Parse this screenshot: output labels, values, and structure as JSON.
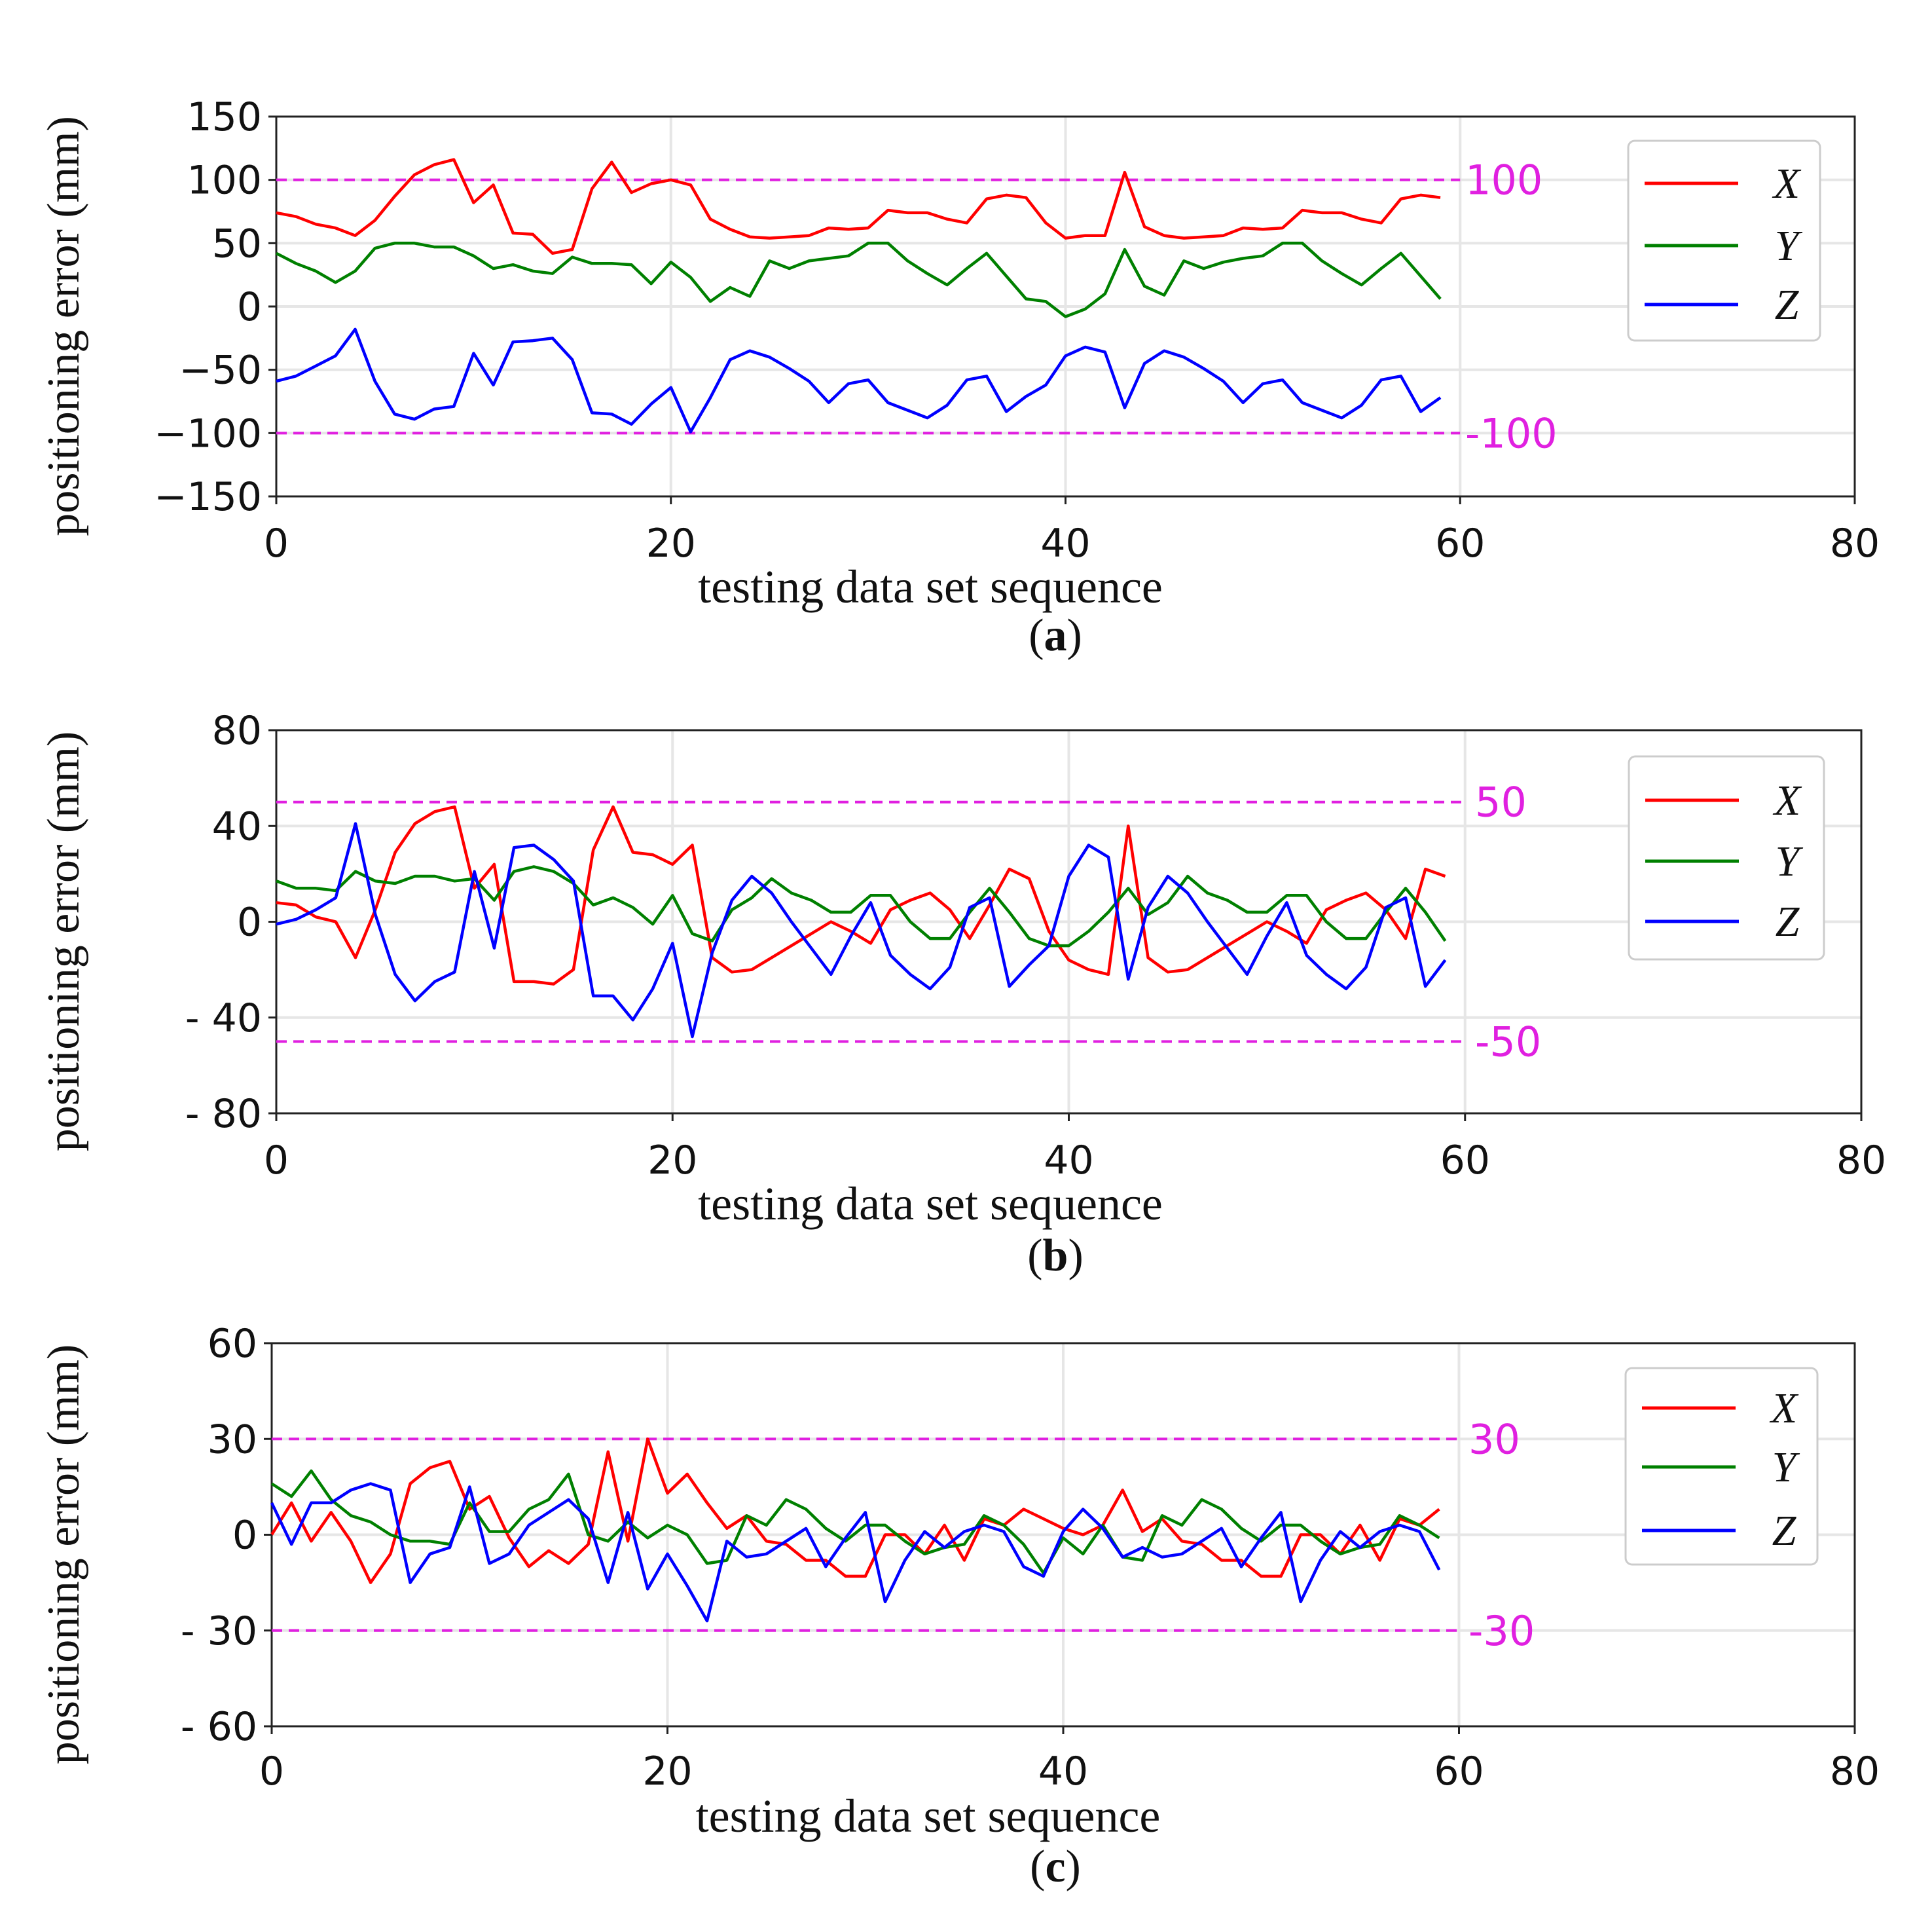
{
  "chart_data": [
    {
      "type": "line",
      "panel": "(a)",
      "caption_letter": "a",
      "xlabel": "testing data set sequence",
      "ylabel": "positioning error (mm)",
      "xlim": [
        0,
        80
      ],
      "ylim": [
        -150,
        150
      ],
      "xticks": [
        0,
        20,
        40,
        60,
        80
      ],
      "yticks": [
        150,
        100,
        50,
        0,
        -50,
        -100,
        -150
      ],
      "ytick_labels": [
        "150",
        "100",
        "50",
        "0",
        "−50",
        "−100",
        "−150"
      ],
      "grid": true,
      "legend": "top-right",
      "reference_lines": [
        {
          "y": 100,
          "label": "100",
          "color": "#e020e0"
        },
        {
          "y": -100,
          "label": "-100",
          "color": "#e020e0"
        }
      ],
      "x": [
        0,
        1,
        2,
        3,
        4,
        5,
        6,
        7,
        8,
        9,
        10,
        11,
        12,
        13,
        14,
        15,
        16,
        17,
        18,
        19,
        20,
        21,
        22,
        23,
        24,
        25,
        26,
        27,
        28,
        29,
        30,
        31,
        32,
        33,
        34,
        35,
        36,
        37,
        38,
        39,
        40,
        41,
        42,
        43,
        44,
        45,
        46,
        47,
        48,
        49,
        50,
        51,
        52,
        53,
        54,
        55,
        56,
        57,
        58,
        59
      ],
      "series": [
        {
          "name": "X",
          "color": "#ff0000",
          "values": [
            74,
            71,
            65,
            62,
            56,
            68,
            87,
            104,
            112,
            116,
            82,
            96,
            58,
            57,
            42,
            45,
            93,
            114,
            90,
            97,
            100,
            96,
            69,
            61,
            55,
            54,
            55,
            56,
            62,
            61,
            62,
            76,
            74,
            74,
            69,
            66,
            85,
            88,
            86,
            66,
            54,
            56,
            56,
            106,
            63,
            56,
            54,
            55,
            56,
            62,
            61,
            62,
            76,
            74,
            74,
            69,
            66,
            85,
            88,
            86
          ]
        },
        {
          "name": "Y",
          "color": "#008000",
          "values": [
            42,
            34,
            28,
            19,
            28,
            46,
            50,
            50,
            47,
            47,
            40,
            30,
            33,
            28,
            26,
            39,
            34,
            34,
            33,
            18,
            35,
            23,
            4,
            15,
            8,
            36,
            30,
            36,
            38,
            40,
            50,
            50,
            36,
            26,
            17,
            30,
            42,
            24,
            6,
            4,
            -8,
            -2,
            10,
            45,
            16,
            9,
            36,
            30,
            35,
            38,
            40,
            50,
            50,
            36,
            26,
            17,
            30,
            42,
            24,
            6
          ]
        },
        {
          "name": "Z",
          "color": "#0000ff",
          "values": [
            -59,
            -55,
            -47,
            -39,
            -18,
            -59,
            -85,
            -89,
            -81,
            -79,
            -37,
            -62,
            -28,
            -27,
            -25,
            -42,
            -84,
            -85,
            -93,
            -77,
            -64,
            -99,
            -72,
            -42,
            -35,
            -40,
            -49,
            -59,
            -76,
            -61,
            -58,
            -76,
            -82,
            -88,
            -78,
            -58,
            -55,
            -83,
            -71,
            -62,
            -39,
            -32,
            -36,
            -80,
            -45,
            -35,
            -40,
            -49,
            -59,
            -76,
            -61,
            -58,
            -76,
            -82,
            -88,
            -78,
            -58,
            -55,
            -83,
            -72
          ]
        }
      ]
    },
    {
      "type": "line",
      "panel": "(b)",
      "caption_letter": "b",
      "xlabel": "testing data set sequence",
      "ylabel": "positioning error (mm)",
      "xlim": [
        0,
        80
      ],
      "ylim": [
        -80,
        80
      ],
      "xticks": [
        0,
        20,
        40,
        60,
        80
      ],
      "yticks": [
        80,
        40,
        0,
        -40,
        -80
      ],
      "ytick_labels": [
        "80",
        "40",
        "0",
        "- 40",
        "- 80"
      ],
      "grid": true,
      "legend": "top-right",
      "reference_lines": [
        {
          "y": 50,
          "label": "50",
          "color": "#e020e0"
        },
        {
          "y": -50,
          "label": "-50",
          "color": "#e020e0"
        }
      ],
      "x": [
        0,
        1,
        2,
        3,
        4,
        5,
        6,
        7,
        8,
        9,
        10,
        11,
        12,
        13,
        14,
        15,
        16,
        17,
        18,
        19,
        20,
        21,
        22,
        23,
        24,
        25,
        26,
        27,
        28,
        29,
        30,
        31,
        32,
        33,
        34,
        35,
        36,
        37,
        38,
        39,
        40,
        41,
        42,
        43,
        44,
        45,
        46,
        47,
        48,
        49,
        50,
        51,
        52,
        53,
        54,
        55,
        56,
        57,
        58,
        59
      ],
      "series": [
        {
          "name": "X",
          "color": "#ff0000",
          "values": [
            8,
            7,
            2,
            0,
            -15,
            5,
            29,
            41,
            46,
            48,
            14,
            24,
            -25,
            -25,
            -26,
            -20,
            30,
            48,
            29,
            28,
            24,
            32,
            -15,
            -21,
            -20,
            -15,
            -10,
            -5,
            0,
            -4,
            -9,
            5,
            9,
            12,
            5,
            -7,
            7,
            22,
            18,
            -4,
            -16,
            -20,
            -22,
            40,
            -15,
            -21,
            -20,
            -15,
            -10,
            -5,
            0,
            -4,
            -9,
            5,
            9,
            12,
            5,
            -7,
            22,
            19
          ]
        },
        {
          "name": "Y",
          "color": "#008000",
          "values": [
            17,
            14,
            14,
            13,
            21,
            17,
            16,
            19,
            19,
            17,
            18,
            9,
            21,
            23,
            21,
            16,
            7,
            10,
            6,
            -1,
            11,
            -5,
            -8,
            5,
            10,
            18,
            12,
            9,
            4,
            4,
            11,
            11,
            0,
            -7,
            -7,
            4,
            14,
            4,
            -7,
            -10,
            -10,
            -4,
            4,
            14,
            3,
            8,
            19,
            12,
            9,
            4,
            4,
            11,
            11,
            0,
            -7,
            -7,
            4,
            14,
            4,
            -8
          ]
        },
        {
          "name": "Z",
          "color": "#0000ff",
          "values": [
            -1,
            1,
            5,
            10,
            41,
            3,
            -22,
            -33,
            -25,
            -21,
            21,
            -11,
            31,
            32,
            26,
            17,
            -31,
            -31,
            -41,
            -28,
            -9,
            -48,
            -13,
            9,
            19,
            12,
            0,
            -11,
            -22,
            -6,
            8,
            -14,
            -22,
            -28,
            -19,
            6,
            10,
            -27,
            -18,
            -10,
            19,
            32,
            27,
            -24,
            6,
            19,
            12,
            0,
            -11,
            -22,
            -6,
            8,
            -14,
            -22,
            -28,
            -19,
            6,
            10,
            -27,
            -16
          ]
        }
      ]
    },
    {
      "type": "line",
      "panel": "(c)",
      "caption_letter": "c",
      "xlabel": "testing data set sequence",
      "ylabel": "positioning error (mm)",
      "xlim": [
        0,
        80
      ],
      "ylim": [
        -60,
        60
      ],
      "xticks": [
        0,
        20,
        40,
        60,
        80
      ],
      "yticks": [
        60,
        30,
        0,
        -30,
        -60
      ],
      "ytick_labels": [
        "60",
        "30",
        "0",
        "- 30",
        "- 60"
      ],
      "grid": true,
      "legend": "top-right",
      "reference_lines": [
        {
          "y": 30,
          "label": "30",
          "color": "#e020e0"
        },
        {
          "y": -30,
          "label": "-30",
          "color": "#e020e0"
        }
      ],
      "x": [
        0,
        1,
        2,
        3,
        4,
        5,
        6,
        7,
        8,
        9,
        10,
        11,
        12,
        13,
        14,
        15,
        16,
        17,
        18,
        19,
        20,
        21,
        22,
        23,
        24,
        25,
        26,
        27,
        28,
        29,
        30,
        31,
        32,
        33,
        34,
        35,
        36,
        37,
        38,
        39,
        40,
        41,
        42,
        43,
        44,
        45,
        46,
        47,
        48,
        49,
        50,
        51,
        52,
        53,
        54,
        55,
        56,
        57,
        58,
        59
      ],
      "series": [
        {
          "name": "X",
          "color": "#ff0000",
          "values": [
            0,
            10,
            -2,
            7,
            -2,
            -15,
            -6,
            16,
            21,
            23,
            8,
            12,
            -1,
            -10,
            -5,
            -9,
            -3,
            26,
            -2,
            30,
            13,
            19,
            10,
            2,
            6,
            -2,
            -3,
            -8,
            -8,
            -13,
            -13,
            0,
            0,
            -6,
            3,
            -8,
            5,
            3,
            8,
            5,
            2,
            0,
            3,
            14,
            1,
            5,
            -2,
            -3,
            -8,
            -8,
            -13,
            -13,
            0,
            0,
            -6,
            3,
            -8,
            5,
            3,
            8
          ]
        },
        {
          "name": "Y",
          "color": "#008000",
          "values": [
            16,
            12,
            20,
            11,
            6,
            4,
            0,
            -2,
            -2,
            -3,
            10,
            1,
            1,
            8,
            11,
            19,
            0,
            -2,
            4,
            -1,
            3,
            0,
            -9,
            -8,
            6,
            3,
            11,
            8,
            2,
            -2,
            3,
            3,
            -2,
            -6,
            -4,
            -3,
            6,
            3,
            -3,
            -12,
            -1,
            -6,
            3,
            -7,
            -8,
            6,
            3,
            11,
            8,
            2,
            -2,
            3,
            3,
            -2,
            -6,
            -4,
            -3,
            6,
            3,
            -1
          ]
        },
        {
          "name": "Z",
          "color": "#0000ff",
          "values": [
            10,
            -3,
            10,
            10,
            14,
            16,
            14,
            -15,
            -6,
            -4,
            15,
            -9,
            -6,
            3,
            7,
            11,
            5,
            -15,
            7,
            -17,
            -6,
            -16,
            -27,
            -2,
            -7,
            -6,
            -2,
            2,
            -10,
            -1,
            7,
            -21,
            -8,
            1,
            -4,
            1,
            3,
            1,
            -10,
            -13,
            1,
            8,
            2,
            -7,
            -4,
            -7,
            -6,
            -2,
            2,
            -10,
            -1,
            7,
            -21,
            -8,
            1,
            -4,
            1,
            3,
            1,
            -11
          ]
        }
      ]
    }
  ]
}
